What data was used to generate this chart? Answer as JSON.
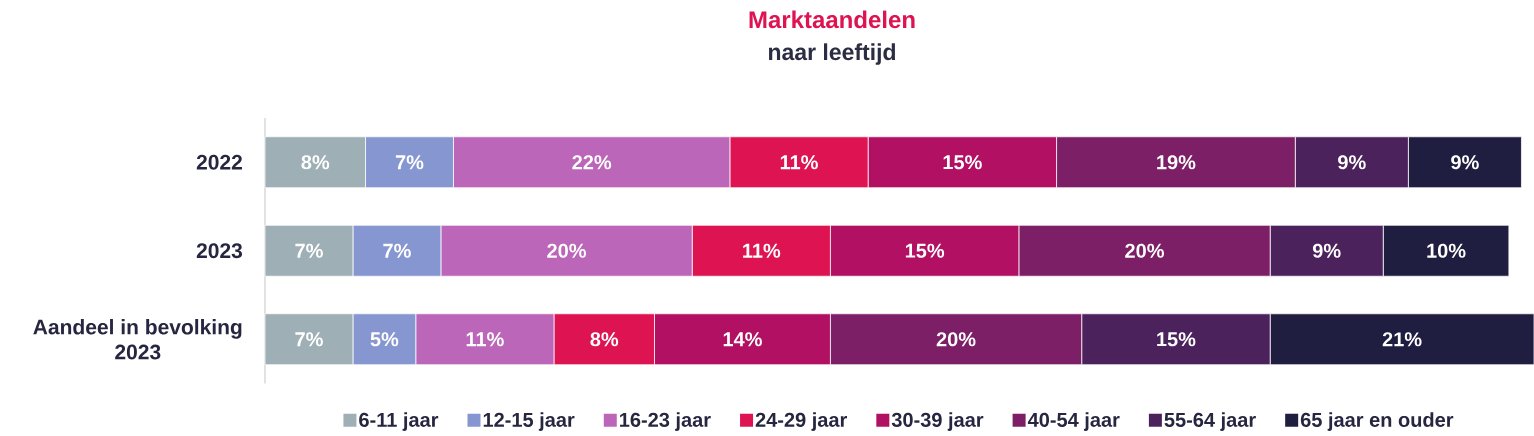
{
  "chart_data": {
    "type": "bar",
    "orientation": "horizontal",
    "stacked": true,
    "title": "Marktaandelen",
    "subtitle": "naar leeftijd",
    "legend": "bottom",
    "categories": [
      "2022",
      "2023",
      "Aandeel in bevolking 2023"
    ],
    "series": [
      {
        "name": "6-11 jaar",
        "color": "#9eafb5",
        "values": [
          8,
          7,
          7
        ],
        "value_labels": [
          "8%",
          "7%",
          "7%"
        ]
      },
      {
        "name": "12-15 jaar",
        "color": "#8696d0",
        "values": [
          7,
          7,
          5
        ],
        "value_labels": [
          "7%",
          "7%",
          "5%"
        ]
      },
      {
        "name": "16-23 jaar",
        "color": "#bc66b9",
        "values": [
          22,
          20,
          11
        ],
        "value_labels": [
          "22%",
          "20%",
          "11%"
        ]
      },
      {
        "name": "24-29 jaar",
        "color": "#de1352",
        "values": [
          11,
          11,
          8
        ],
        "value_labels": [
          "11%",
          "11%",
          "8%"
        ]
      },
      {
        "name": "30-39 jaar",
        "color": "#b11063",
        "values": [
          15,
          15,
          14
        ],
        "value_labels": [
          "15%",
          "15%",
          "14%"
        ]
      },
      {
        "name": "40-54 jaar",
        "color": "#7d1f66",
        "values": [
          19,
          20,
          20
        ],
        "value_labels": [
          "19%",
          "20%",
          "20%"
        ]
      },
      {
        "name": "55-64 jaar",
        "color": "#4b225b",
        "values": [
          9,
          9,
          15
        ],
        "value_labels": [
          "9%",
          "9%",
          "15%"
        ]
      },
      {
        "name": "65 jaar en ouder",
        "color": "#1f1e40",
        "values": [
          9,
          10,
          21
        ],
        "value_labels": [
          "9%",
          "10%",
          "21%"
        ]
      }
    ]
  }
}
